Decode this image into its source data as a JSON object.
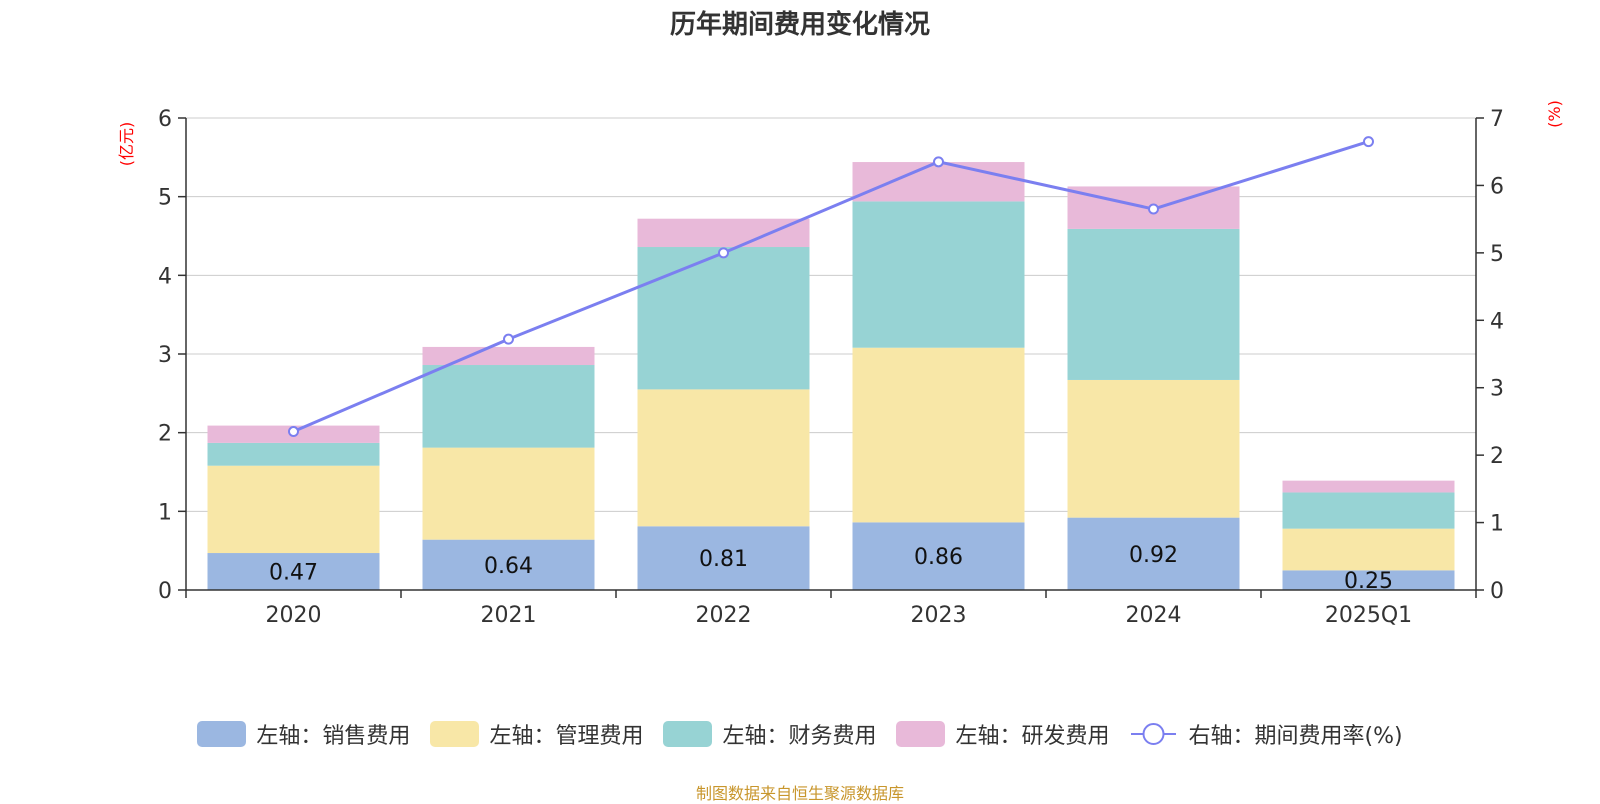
{
  "chart_data": {
    "type": "bar",
    "title": "历年期间费用变化情况",
    "categories": [
      "2020",
      "2021",
      "2022",
      "2023",
      "2024",
      "2025Q1"
    ],
    "left_axis": {
      "unit": "(亿元)",
      "ylim": [
        0,
        6
      ],
      "ticks": [
        0,
        1,
        2,
        3,
        4,
        5,
        6
      ]
    },
    "right_axis": {
      "unit": "(%)",
      "ylim": [
        0,
        7
      ],
      "ticks": [
        0,
        1,
        2,
        3,
        4,
        5,
        6,
        7
      ]
    },
    "series": [
      {
        "name": "左轴：销售费用",
        "kind": "stacked-bar",
        "axis": "left",
        "color": "#9bb7e1",
        "values": [
          0.47,
          0.64,
          0.81,
          0.86,
          0.92,
          0.25
        ],
        "show_labels": true
      },
      {
        "name": "左轴：管理费用",
        "kind": "stacked-bar",
        "axis": "left",
        "color": "#f8e7a7",
        "values": [
          1.11,
          1.17,
          1.74,
          2.22,
          1.75,
          0.53
        ]
      },
      {
        "name": "左轴：财务费用",
        "kind": "stacked-bar",
        "axis": "left",
        "color": "#97d3d4",
        "values": [
          0.29,
          1.05,
          1.81,
          1.86,
          1.92,
          0.46
        ]
      },
      {
        "name": "左轴：研发费用",
        "kind": "stacked-bar",
        "axis": "left",
        "color": "#e8b9d9",
        "values": [
          0.22,
          0.23,
          0.36,
          0.5,
          0.54,
          0.15
        ]
      },
      {
        "name": "右轴：期间费用率(%)",
        "kind": "line",
        "axis": "right",
        "color": "#7b7ff0",
        "values": [
          2.35,
          3.72,
          5.0,
          6.35,
          5.65,
          6.65
        ]
      }
    ],
    "grid": true,
    "legend_position": "bottom"
  },
  "source_note": "制图数据来自恒生聚源数据库"
}
